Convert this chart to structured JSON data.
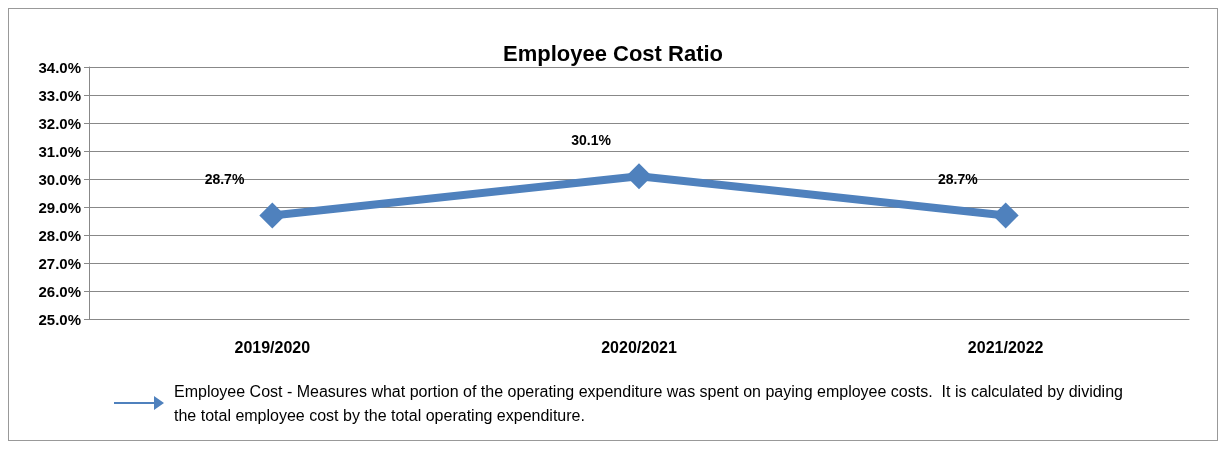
{
  "chart_data": {
    "type": "line",
    "title": "Employee Cost Ratio",
    "categories": [
      "2019/2020",
      "2020/2021",
      "2021/2022"
    ],
    "series": [
      {
        "name": "Employee Cost - Measures what portion of the operating expenditure was spent on paying employee costs.  It is calculated by dividing the total employee cost by the total operating expenditure.",
        "color": "#4f81bd",
        "values": [
          28.7,
          30.1,
          28.7
        ],
        "value_labels": [
          "28.7%",
          "30.1%",
          "28.7%"
        ]
      }
    ],
    "ylim": [
      25,
      34
    ],
    "yticks": [
      {
        "value": 25,
        "label": "25.0%"
      },
      {
        "value": 26,
        "label": "26.0%"
      },
      {
        "value": 27,
        "label": "27.0%"
      },
      {
        "value": 28,
        "label": "28.0%"
      },
      {
        "value": 29,
        "label": "29.0%"
      },
      {
        "value": 30,
        "label": "30.0%"
      },
      {
        "value": 31,
        "label": "31.0%"
      },
      {
        "value": 32,
        "label": "32.0%"
      },
      {
        "value": 33,
        "label": "33.0%"
      },
      {
        "value": 34,
        "label": "34.0%"
      }
    ],
    "grid": "y",
    "legend": "bottom",
    "marker": "diamond",
    "line_style": "solid"
  }
}
